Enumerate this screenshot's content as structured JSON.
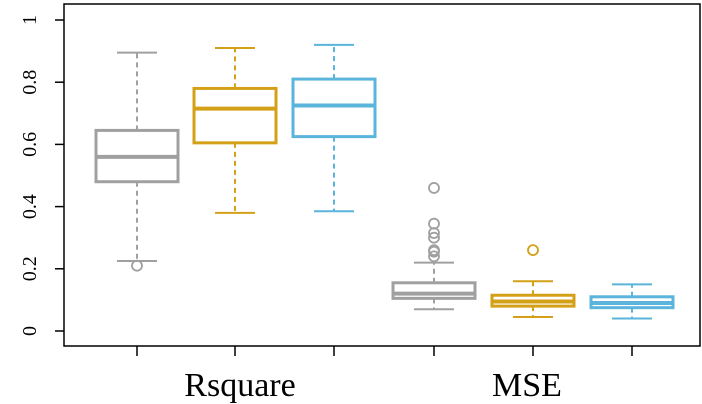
{
  "chart_data": {
    "type": "box",
    "ylim": [
      0,
      1
    ],
    "yticks": [
      "0",
      "0.2",
      "0.4",
      "0.6",
      "0.8",
      "1"
    ],
    "groups": [
      "Rsquare",
      "MSE"
    ],
    "box_colors": [
      "#a0a0a0",
      "#d4a017",
      "#5ab4db"
    ],
    "boxes": [
      {
        "group": "Rsquare",
        "color_index": 0,
        "min": 0.225,
        "q1": 0.48,
        "median": 0.56,
        "q3": 0.645,
        "max": 0.895,
        "outliers": [
          0.21
        ]
      },
      {
        "group": "Rsquare",
        "color_index": 1,
        "min": 0.38,
        "q1": 0.605,
        "median": 0.715,
        "q3": 0.78,
        "max": 0.91,
        "outliers": []
      },
      {
        "group": "Rsquare",
        "color_index": 2,
        "min": 0.385,
        "q1": 0.625,
        "median": 0.725,
        "q3": 0.81,
        "max": 0.92,
        "outliers": []
      },
      {
        "group": "MSE",
        "color_index": 0,
        "min": 0.07,
        "q1": 0.105,
        "median": 0.12,
        "q3": 0.155,
        "max": 0.22,
        "outliers": [
          0.24,
          0.255,
          0.26,
          0.3,
          0.315,
          0.345,
          0.46
        ]
      },
      {
        "group": "MSE",
        "color_index": 1,
        "min": 0.045,
        "q1": 0.08,
        "median": 0.095,
        "q3": 0.115,
        "max": 0.16,
        "outliers": [
          0.26
        ]
      },
      {
        "group": "MSE",
        "color_index": 2,
        "min": 0.04,
        "q1": 0.075,
        "median": 0.09,
        "q3": 0.11,
        "max": 0.15,
        "outliers": []
      }
    ]
  }
}
